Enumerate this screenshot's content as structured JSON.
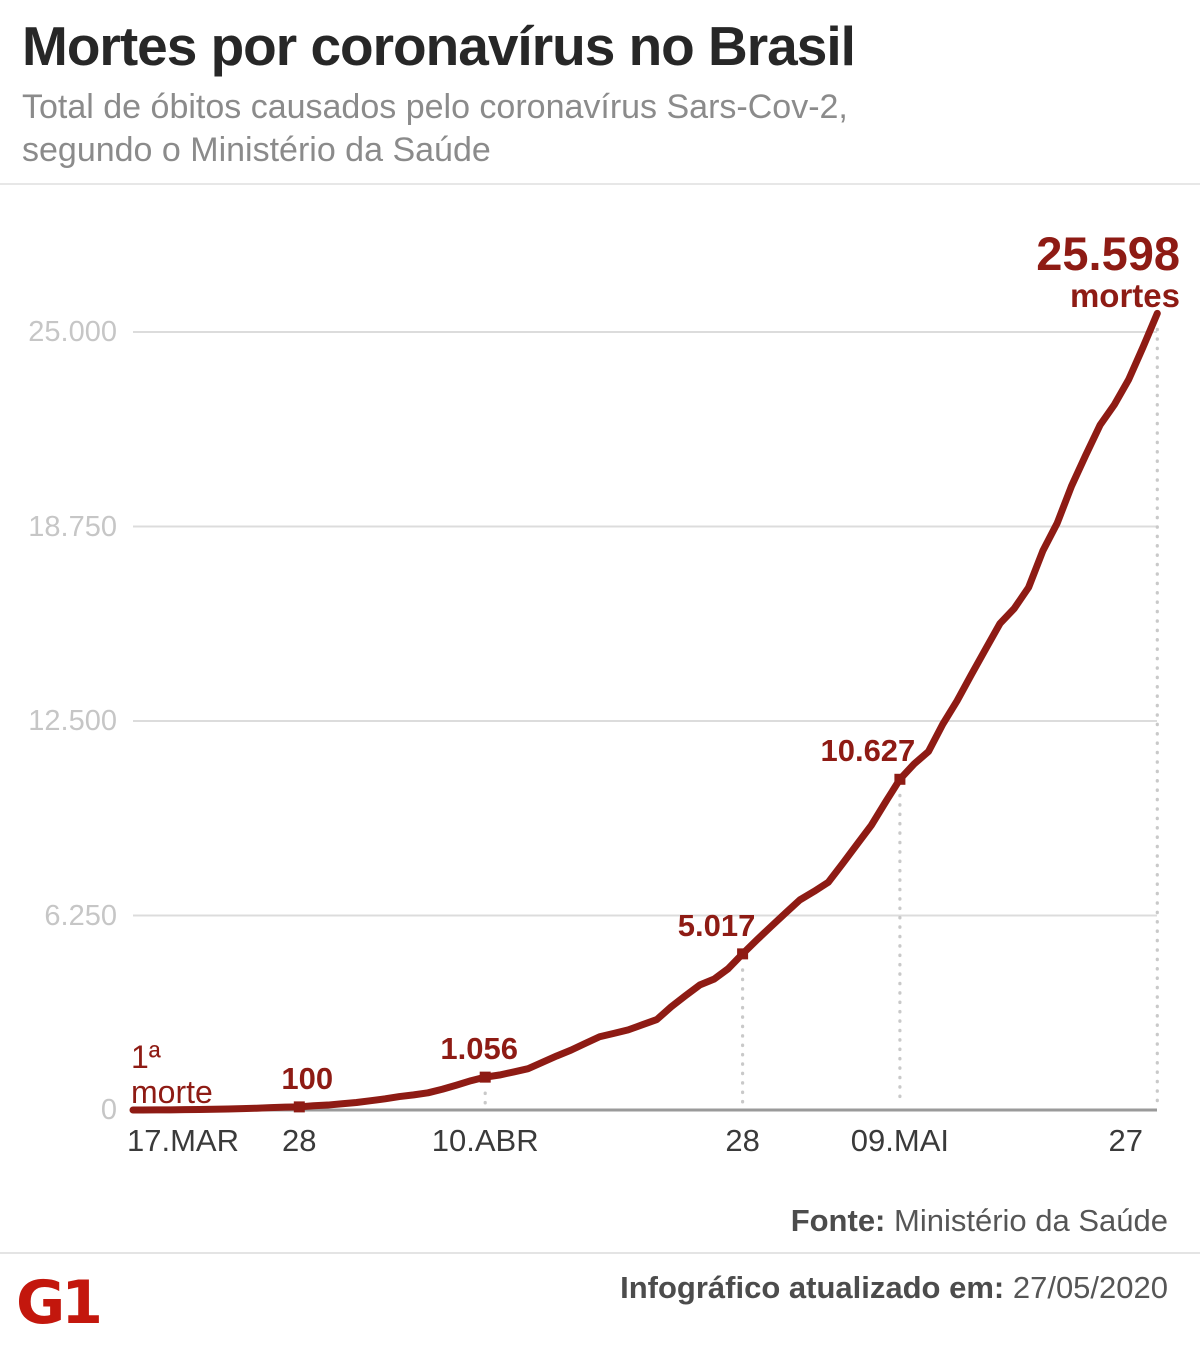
{
  "header": {
    "title": "Mortes por coronavírus no Brasil",
    "subtitle": "Total de óbitos causados pelo coronavírus Sars-Cov-2,\nsegundo o Ministério da Saúde"
  },
  "footer": {
    "source_label": "Fonte:",
    "source_value": " Ministério da Saúde",
    "updated_label": "Infográfico atualizado em:",
    "updated_value": " 27/05/2020",
    "logo_text": "G1"
  },
  "colors": {
    "line": "#8e1b14",
    "annotation": "#8e1b14",
    "grid": "#dcdcdc",
    "axis": "#9a9a9a",
    "guide": "#c9c9c9",
    "logo_red": "#c3170d"
  },
  "chart_data": {
    "type": "line",
    "title": "Mortes por coronavírus no Brasil",
    "xlabel": "",
    "ylabel": "",
    "ylim": [
      0,
      25598
    ],
    "grid": "horizontal",
    "legend": "none",
    "y_ticks": [
      {
        "value": 0,
        "label": "0"
      },
      {
        "value": 6250,
        "label": "6.250"
      },
      {
        "value": 12500,
        "label": "12.500"
      },
      {
        "value": 18750,
        "label": "18.750"
      },
      {
        "value": 25000,
        "label": "25.000"
      }
    ],
    "x_ticks": [
      {
        "label": "17.MAR",
        "day": 0,
        "align": "left"
      },
      {
        "label": "28",
        "day": 11,
        "align": "center"
      },
      {
        "label": "10.ABR",
        "day": 24,
        "align": "center"
      },
      {
        "label": "28",
        "day": 42,
        "align": "center"
      },
      {
        "label": "09.MAI",
        "day": 53,
        "align": "center"
      },
      {
        "label": "27",
        "day": 71,
        "align": "right"
      }
    ],
    "values": [
      1,
      3,
      6,
      11,
      15,
      25,
      34,
      46,
      57,
      77,
      92,
      100,
      136,
      159,
      201,
      240,
      299,
      359,
      432,
      486,
      553,
      667,
      800,
      941,
      1056,
      1124,
      1223,
      1328,
      1532,
      1736,
      1924,
      2141,
      2354,
      2462,
      2575,
      2741,
      2906,
      3313,
      3670,
      4016,
      4205,
      4543,
      5017,
      5466,
      5901,
      6329,
      6750,
      7025,
      7321,
      7921,
      8536,
      9146,
      9897,
      10627,
      11123,
      11519,
      12400,
      13149,
      13993,
      14817,
      15633,
      16118,
      16792,
      17971,
      18859,
      20047,
      21048,
      22013,
      22666,
      23473,
      24512,
      25598
    ],
    "annotations": [
      {
        "label": "100",
        "day": 11,
        "value": 100,
        "dx": 8,
        "marker": true,
        "guide": false
      },
      {
        "label": "1.056",
        "day": 24,
        "value": 1056,
        "dx": -6,
        "marker": true,
        "guide": true
      },
      {
        "label": "5.017",
        "day": 42,
        "value": 5017,
        "dx": -26,
        "marker": true,
        "guide": true
      },
      {
        "label": "10.627",
        "day": 53,
        "value": 10627,
        "dx": -32,
        "marker": true,
        "guide": true
      }
    ],
    "endpoint": {
      "day": 71,
      "value": 25598,
      "value_label": "25.598",
      "unit_label": "mortes",
      "guide": true
    },
    "first_death_label": {
      "line1": "1ª",
      "line2": "morte"
    }
  }
}
